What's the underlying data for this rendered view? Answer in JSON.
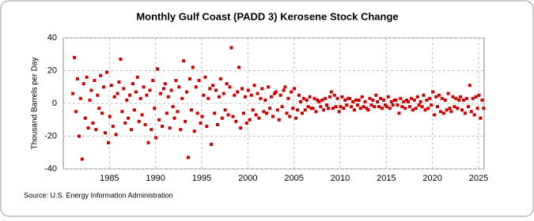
{
  "chart_data": {
    "type": "scatter",
    "title": "Monthly Gulf Coast (PADD 3) Kerosene Stock Change",
    "y_label": "Thousand Barrels per Day",
    "source": "Source: U.S. Energy Information Administration",
    "color": "#cc0000",
    "grid": true,
    "xlim": [
      1980,
      2025.6
    ],
    "xticks": [
      1985,
      1990,
      1995,
      2000,
      2005,
      2010,
      2015,
      2020,
      2025
    ],
    "ylim": [
      -40,
      40
    ],
    "yticks": [
      -40,
      -20,
      0,
      20,
      40
    ],
    "x": [
      1981.04,
      1981.21,
      1981.38,
      1981.54,
      1981.71,
      1981.88,
      1982.04,
      1982.21,
      1982.38,
      1982.54,
      1982.71,
      1982.88,
      1983.04,
      1983.21,
      1983.38,
      1983.54,
      1983.71,
      1983.88,
      1984.04,
      1984.21,
      1984.38,
      1984.54,
      1984.71,
      1984.88,
      1985.04,
      1985.21,
      1985.38,
      1985.54,
      1985.71,
      1985.88,
      1986.04,
      1986.21,
      1986.38,
      1986.54,
      1986.71,
      1986.88,
      1987.04,
      1987.21,
      1987.38,
      1987.54,
      1987.71,
      1987.88,
      1988.04,
      1988.21,
      1988.38,
      1988.54,
      1988.71,
      1988.88,
      1989.04,
      1989.21,
      1989.38,
      1989.54,
      1989.71,
      1989.88,
      1990.04,
      1990.21,
      1990.38,
      1990.54,
      1990.71,
      1990.88,
      1991.04,
      1991.21,
      1991.38,
      1991.54,
      1991.71,
      1991.88,
      1992.04,
      1992.21,
      1992.38,
      1992.54,
      1992.71,
      1992.88,
      1993.04,
      1993.21,
      1993.38,
      1993.54,
      1993.71,
      1993.88,
      1994.04,
      1994.21,
      1994.38,
      1994.54,
      1994.71,
      1994.88,
      1995.04,
      1995.21,
      1995.38,
      1995.54,
      1995.71,
      1995.88,
      1996.04,
      1996.21,
      1996.38,
      1996.54,
      1996.71,
      1996.88,
      1997.04,
      1997.21,
      1997.38,
      1997.54,
      1997.71,
      1997.88,
      1998.04,
      1998.21,
      1998.38,
      1998.54,
      1998.71,
      1998.88,
      1999.04,
      1999.21,
      1999.38,
      1999.54,
      1999.71,
      1999.88,
      2000.04,
      2000.21,
      2000.38,
      2000.54,
      2000.71,
      2000.88,
      2001.04,
      2001.21,
      2001.38,
      2001.54,
      2001.71,
      2001.88,
      2002.04,
      2002.21,
      2002.38,
      2002.54,
      2002.71,
      2002.88,
      2003.04,
      2003.21,
      2003.38,
      2003.54,
      2003.71,
      2003.88,
      2004.04,
      2004.21,
      2004.38,
      2004.54,
      2004.71,
      2004.88,
      2005.04,
      2005.21,
      2005.38,
      2005.54,
      2005.71,
      2005.88,
      2006.04,
      2006.21,
      2006.38,
      2006.54,
      2006.71,
      2006.88,
      2007.04,
      2007.21,
      2007.38,
      2007.54,
      2007.71,
      2007.88,
      2008.04,
      2008.21,
      2008.38,
      2008.54,
      2008.71,
      2008.88,
      2009.04,
      2009.21,
      2009.38,
      2009.54,
      2009.71,
      2009.88,
      2010.04,
      2010.21,
      2010.38,
      2010.54,
      2010.71,
      2010.88,
      2011.04,
      2011.21,
      2011.38,
      2011.54,
      2011.71,
      2011.88,
      2012.04,
      2012.21,
      2012.38,
      2012.54,
      2012.71,
      2012.88,
      2013.04,
      2013.21,
      2013.38,
      2013.54,
      2013.71,
      2013.88,
      2014.04,
      2014.21,
      2014.38,
      2014.54,
      2014.71,
      2014.88,
      2015.04,
      2015.21,
      2015.38,
      2015.54,
      2015.71,
      2015.88,
      2016.04,
      2016.21,
      2016.38,
      2016.54,
      2016.71,
      2016.88,
      2017.04,
      2017.21,
      2017.38,
      2017.54,
      2017.71,
      2017.88,
      2018.04,
      2018.21,
      2018.38,
      2018.54,
      2018.71,
      2018.88,
      2019.04,
      2019.21,
      2019.38,
      2019.54,
      2019.71,
      2019.88,
      2020.04,
      2020.21,
      2020.38,
      2020.54,
      2020.71,
      2020.88,
      2021.04,
      2021.21,
      2021.38,
      2021.54,
      2021.71,
      2021.88,
      2022.04,
      2022.21,
      2022.38,
      2022.54,
      2022.71,
      2022.88,
      2023.04,
      2023.21,
      2023.38,
      2023.54,
      2023.71,
      2023.88,
      2024.04,
      2024.21,
      2024.38,
      2024.54,
      2024.71,
      2024.88,
      2025.04,
      2025.21,
      2025.38,
      2025.54
    ],
    "values": [
      6,
      28,
      -5,
      15,
      -20,
      3,
      -34,
      12,
      -9,
      16,
      -15,
      2,
      8,
      -12,
      14,
      -16,
      5,
      -3,
      17,
      -6,
      10,
      -18,
      19,
      -24,
      -8,
      11,
      -14,
      4,
      -19,
      6,
      13,
      27,
      -5,
      9,
      -12,
      2,
      -9,
      5,
      -16,
      12,
      -4,
      7,
      16,
      -11,
      3,
      -7,
      10,
      -13,
      5,
      -24,
      8,
      -16,
      14,
      -3,
      -21,
      21,
      -10,
      6,
      -14,
      9,
      12,
      -6,
      4,
      -15,
      8,
      -2,
      -9,
      14,
      -5,
      10,
      -16,
      3,
      26,
      -11,
      7,
      -33,
      15,
      -4,
      22,
      -17,
      10,
      -6,
      14,
      -12,
      -8,
      5,
      16,
      -14,
      3,
      9,
      -25,
      11,
      -6,
      8,
      -13,
      4,
      15,
      -9,
      6,
      -4,
      12,
      -7,
      10,
      34,
      -8,
      5,
      -11,
      7,
      22,
      -15,
      9,
      -6,
      4,
      -12,
      8,
      -10,
      5,
      -4,
      11,
      -7,
      6,
      -9,
      3,
      9,
      -5,
      2,
      -6,
      10,
      -3,
      4,
      -8,
      6,
      7,
      -4,
      -10,
      5,
      -2,
      8,
      10,
      -6,
      3,
      -8,
      7,
      -3,
      9,
      -9,
      -4,
      5,
      1,
      -6,
      3,
      -4,
      2,
      -2,
      4,
      -3,
      -3,
      3,
      -5,
      2,
      1,
      -2,
      2,
      -4,
      3,
      -1,
      -3,
      4,
      7,
      -3,
      5,
      -2,
      3,
      -5,
      -2,
      4,
      -3,
      2,
      -1,
      3,
      3,
      -2,
      1,
      -4,
      2,
      -1,
      2,
      -3,
      4,
      -2,
      1,
      -3,
      -4,
      3,
      -1,
      2,
      -2,
      5,
      1,
      -2,
      3,
      -3,
      2,
      -1,
      -2,
      4,
      -3,
      1,
      -1,
      2,
      2,
      -1,
      -6,
      3,
      -2,
      1,
      -3,
      2,
      1,
      -2,
      3,
      -4,
      2,
      -3,
      4,
      -1,
      1,
      -2,
      5,
      -4,
      2,
      -3,
      3,
      -1,
      7,
      -7,
      4,
      -2,
      5,
      -5,
      3,
      -6,
      2,
      -4,
      6,
      -3,
      -5,
      4,
      -2,
      3,
      -3,
      2,
      4,
      -4,
      2,
      -6,
      3,
      -2,
      11,
      -5,
      3,
      -7,
      4,
      -3,
      5,
      -9,
      2,
      -3
    ]
  }
}
